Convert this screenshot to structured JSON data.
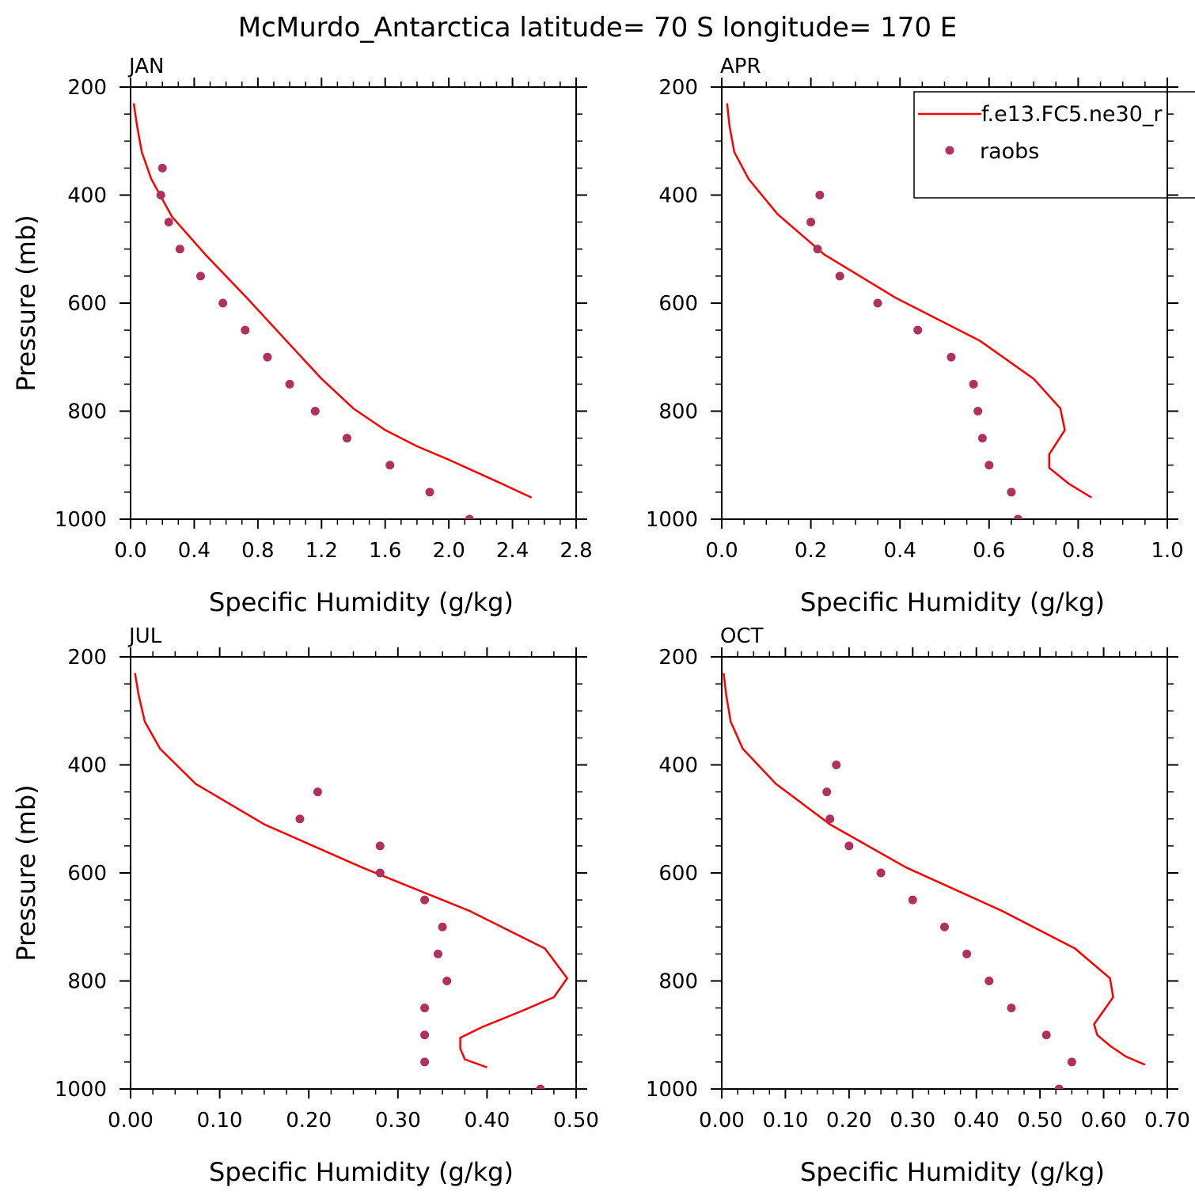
{
  "title": "McMurdo_Antarctica  latitude= 70 S longitude= 170 E",
  "colors": {
    "model": "#ff0000",
    "obs": "#b03060",
    "axis": "#000000"
  },
  "legend": {
    "placement": "top-right of APR panel, clipped at right edge",
    "model_label": "f.e13.FC5.ne30_r",
    "obs_label": "raobs"
  },
  "chart_data": [
    {
      "type": "line",
      "panel": "JAN",
      "xlabel": "Specific Humidity (g/kg)",
      "ylabel": "Pressure (mb)",
      "xlim": [
        0,
        2.8
      ],
      "ylim": [
        1000,
        200
      ],
      "y_inverted": true,
      "xticks": [
        "0.0",
        "0.4",
        "0.8",
        "1.2",
        "1.6",
        "2.0",
        "2.4",
        "2.8"
      ],
      "yticks": [
        "200",
        "400",
        "600",
        "800",
        "1000"
      ],
      "series": [
        {
          "name": "f.e13.FC5.ne30_r",
          "kind": "line",
          "points": [
            [
              0.02,
              230
            ],
            [
              0.04,
              270
            ],
            [
              0.07,
              320
            ],
            [
              0.13,
              370
            ],
            [
              0.26,
              440
            ],
            [
              0.47,
              510
            ],
            [
              0.73,
              590
            ],
            [
              0.98,
              670
            ],
            [
              1.2,
              740
            ],
            [
              1.4,
              795
            ],
            [
              1.6,
              835
            ],
            [
              1.8,
              865
            ],
            [
              2.0,
              890
            ],
            [
              2.3,
              930
            ],
            [
              2.52,
              960
            ]
          ]
        },
        {
          "name": "raobs",
          "kind": "scatter",
          "points": [
            [
              0.2,
              350
            ],
            [
              0.19,
              400
            ],
            [
              0.24,
              450
            ],
            [
              0.31,
              500
            ],
            [
              0.44,
              550
            ],
            [
              0.58,
              600
            ],
            [
              0.72,
              650
            ],
            [
              0.86,
              700
            ],
            [
              1.0,
              750
            ],
            [
              1.16,
              800
            ],
            [
              1.36,
              850
            ],
            [
              1.63,
              900
            ],
            [
              1.88,
              950
            ],
            [
              2.13,
              1000
            ]
          ]
        }
      ]
    },
    {
      "type": "line",
      "panel": "APR",
      "xlabel": "Specific Humidity (g/kg)",
      "ylabel": "",
      "xlim": [
        0,
        1.0
      ],
      "ylim": [
        1000,
        200
      ],
      "y_inverted": true,
      "xticks": [
        "0.0",
        "0.2",
        "0.4",
        "0.6",
        "0.8",
        "1.0"
      ],
      "yticks": [
        "200",
        "400",
        "600",
        "800",
        "1000"
      ],
      "series": [
        {
          "name": "f.e13.FC5.ne30_r",
          "kind": "line",
          "points": [
            [
              0.012,
              230
            ],
            [
              0.017,
              270
            ],
            [
              0.028,
              320
            ],
            [
              0.06,
              370
            ],
            [
              0.125,
              435
            ],
            [
              0.23,
              510
            ],
            [
              0.39,
              590
            ],
            [
              0.58,
              670
            ],
            [
              0.7,
              740
            ],
            [
              0.76,
              795
            ],
            [
              0.77,
              835
            ],
            [
              0.735,
              880
            ],
            [
              0.735,
              905
            ],
            [
              0.78,
              935
            ],
            [
              0.83,
              960
            ]
          ]
        },
        {
          "name": "raobs",
          "kind": "scatter",
          "points": [
            [
              0.22,
              400
            ],
            [
              0.2,
              450
            ],
            [
              0.215,
              500
            ],
            [
              0.265,
              550
            ],
            [
              0.35,
              600
            ],
            [
              0.44,
              650
            ],
            [
              0.515,
              700
            ],
            [
              0.565,
              750
            ],
            [
              0.575,
              800
            ],
            [
              0.585,
              850
            ],
            [
              0.6,
              900
            ],
            [
              0.65,
              950
            ],
            [
              0.665,
              1000
            ]
          ]
        }
      ]
    },
    {
      "type": "line",
      "panel": "JUL",
      "xlabel": "Specific Humidity (g/kg)",
      "ylabel": "Pressure (mb)",
      "xlim": [
        0,
        0.5
      ],
      "ylim": [
        1000,
        200
      ],
      "y_inverted": true,
      "xticks": [
        "0.00",
        "0.10",
        "0.20",
        "0.30",
        "0.40",
        "0.50"
      ],
      "yticks": [
        "200",
        "400",
        "600",
        "800",
        "1000"
      ],
      "series": [
        {
          "name": "f.e13.FC5.ne30_r",
          "kind": "line",
          "points": [
            [
              0.005,
              230
            ],
            [
              0.009,
              270
            ],
            [
              0.016,
              320
            ],
            [
              0.033,
              370
            ],
            [
              0.073,
              435
            ],
            [
              0.15,
              510
            ],
            [
              0.26,
              590
            ],
            [
              0.38,
              670
            ],
            [
              0.465,
              740
            ],
            [
              0.49,
              795
            ],
            [
              0.475,
              830
            ],
            [
              0.44,
              855
            ],
            [
              0.395,
              885
            ],
            [
              0.37,
              905
            ],
            [
              0.37,
              925
            ],
            [
              0.375,
              945
            ],
            [
              0.4,
              960
            ]
          ]
        },
        {
          "name": "raobs",
          "kind": "scatter",
          "points": [
            [
              0.21,
              450
            ],
            [
              0.19,
              500
            ],
            [
              0.28,
              550
            ],
            [
              0.28,
              600
            ],
            [
              0.33,
              650
            ],
            [
              0.35,
              700
            ],
            [
              0.345,
              750
            ],
            [
              0.355,
              800
            ],
            [
              0.33,
              850
            ],
            [
              0.33,
              900
            ],
            [
              0.33,
              950
            ],
            [
              0.46,
              1000
            ]
          ]
        }
      ]
    },
    {
      "type": "line",
      "panel": "OCT",
      "xlabel": "Specific Humidity (g/kg)",
      "ylabel": "",
      "xlim": [
        0,
        0.7
      ],
      "ylim": [
        1000,
        200
      ],
      "y_inverted": true,
      "xticks": [
        "0.00",
        "0.10",
        "0.20",
        "0.30",
        "0.40",
        "0.50",
        "0.60",
        "0.70"
      ],
      "yticks": [
        "200",
        "400",
        "600",
        "800",
        "1000"
      ],
      "series": [
        {
          "name": "f.e13.FC5.ne30_r",
          "kind": "line",
          "points": [
            [
              0.003,
              230
            ],
            [
              0.007,
              270
            ],
            [
              0.014,
              320
            ],
            [
              0.033,
              370
            ],
            [
              0.085,
              435
            ],
            [
              0.17,
              510
            ],
            [
              0.29,
              590
            ],
            [
              0.44,
              670
            ],
            [
              0.555,
              740
            ],
            [
              0.61,
              795
            ],
            [
              0.615,
              830
            ],
            [
              0.585,
              880
            ],
            [
              0.59,
              900
            ],
            [
              0.61,
              920
            ],
            [
              0.635,
              940
            ],
            [
              0.665,
              955
            ]
          ]
        },
        {
          "name": "raobs",
          "kind": "scatter",
          "points": [
            [
              0.18,
              400
            ],
            [
              0.165,
              450
            ],
            [
              0.17,
              500
            ],
            [
              0.2,
              550
            ],
            [
              0.25,
              600
            ],
            [
              0.3,
              650
            ],
            [
              0.35,
              700
            ],
            [
              0.385,
              750
            ],
            [
              0.42,
              800
            ],
            [
              0.455,
              850
            ],
            [
              0.51,
              900
            ],
            [
              0.55,
              950
            ],
            [
              0.53,
              1000
            ]
          ]
        }
      ]
    }
  ]
}
